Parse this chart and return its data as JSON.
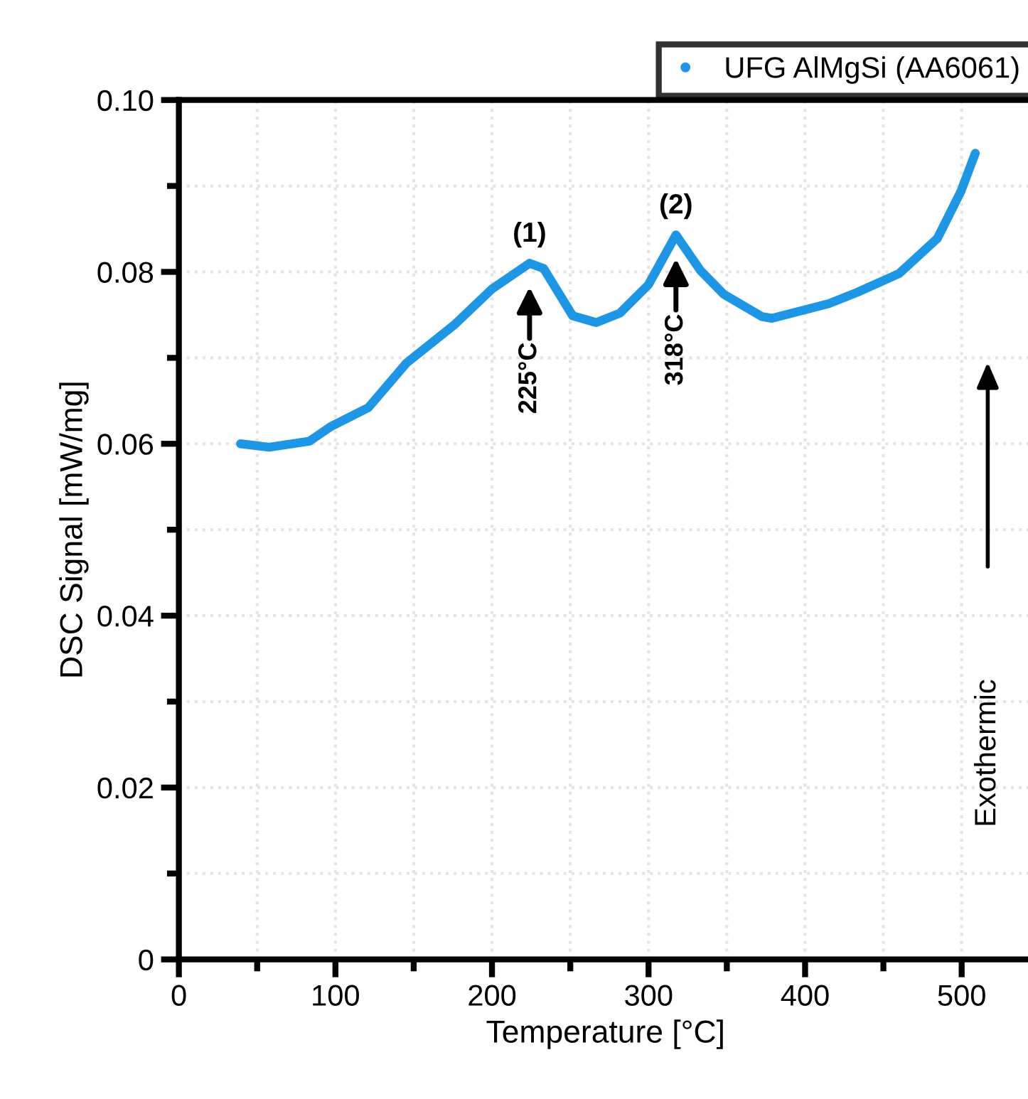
{
  "chart_data": {
    "type": "line",
    "xlabel": "Temperature [°C]",
    "ylabel": "DSC Signal [mW/mg]",
    "xlim": [
      0,
      545
    ],
    "xticks": [
      0,
      100,
      200,
      300,
      400,
      500
    ],
    "ylim": [
      0,
      0.1
    ],
    "yticks": [
      0,
      0.02,
      0.04,
      0.06,
      0.08,
      {
        "value": 0.1,
        "label": "0.10"
      }
    ],
    "grid": true,
    "legend": "top right",
    "series": [
      {
        "name": "UFG AlMgSi (AA6061)",
        "color": "#1e96e6",
        "x": [
          39.4,
          57.6,
          83.4,
          97,
          121,
          145.4,
          175.7,
          199.9,
          224,
          233,
          251.5,
          266.6,
          281.7,
          299.9,
          317.5,
          333,
          348,
          372.4,
          378.8,
          415,
          433,
          460,
          484.5,
          499.6,
          508.7
        ],
        "values": [
          0.06,
          0.0596,
          0.0603,
          0.062,
          0.0642,
          0.0694,
          0.0738,
          0.078,
          0.081,
          0.0804,
          0.0749,
          0.0741,
          0.0752,
          0.0785,
          0.0843,
          0.0802,
          0.0774,
          0.0748,
          0.0746,
          0.0763,
          0.0776,
          0.0798,
          0.0839,
          0.0894,
          0.0938
        ]
      }
    ],
    "annotations": [
      {
        "text": "(1)",
        "x": 224,
        "y": 0.081
      },
      {
        "text": "(2)",
        "x": 317.5,
        "y": 0.0843
      },
      "225°C",
      "318°C",
      "Exothermic"
    ]
  }
}
